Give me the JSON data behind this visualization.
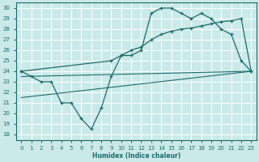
{
  "xlabel": "Humidex (Indice chaleur)",
  "bg_color": "#cce9e9",
  "grid_color": "#ffffff",
  "line_color": "#1a6b6b",
  "xlim": [
    -0.5,
    23.5
  ],
  "ylim": [
    17.5,
    30.5
  ],
  "xticks": [
    0,
    1,
    2,
    3,
    4,
    5,
    6,
    7,
    8,
    9,
    10,
    11,
    12,
    13,
    14,
    15,
    16,
    17,
    18,
    19,
    20,
    21,
    22,
    23
  ],
  "yticks": [
    18,
    19,
    20,
    21,
    22,
    23,
    24,
    25,
    26,
    27,
    28,
    29,
    30
  ],
  "curve1_x": [
    0,
    1,
    2,
    3,
    4,
    5,
    6,
    7,
    8,
    9,
    10,
    11,
    12,
    13,
    14,
    15,
    16,
    17,
    18,
    19,
    20,
    21,
    22,
    23
  ],
  "curve1_y": [
    24,
    23.5,
    23,
    23,
    21,
    21,
    19.5,
    18.5,
    20.5,
    23.5,
    25.5,
    25.5,
    26,
    29.5,
    30,
    30,
    29.5,
    29,
    29.5,
    29,
    28,
    27.5,
    25,
    24
  ],
  "curve2_x": [
    0,
    9,
    10,
    11,
    12,
    13,
    14,
    15,
    16,
    17,
    18,
    19,
    20,
    21,
    22,
    23
  ],
  "curve2_y": [
    24,
    25,
    25.5,
    26,
    26.3,
    27,
    27.5,
    27.8,
    28,
    28.1,
    28.3,
    28.5,
    28.7,
    28.8,
    29,
    24
  ],
  "trend1_x": [
    0,
    23
  ],
  "trend1_y": [
    23.5,
    24
  ],
  "trend2_x": [
    0,
    23
  ],
  "trend2_y": [
    21.5,
    24
  ]
}
